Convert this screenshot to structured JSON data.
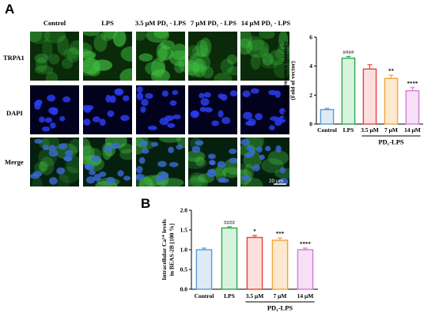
{
  "panel_a": {
    "letter": "A",
    "columns": [
      "Control",
      "LPS",
      "3.5 μM PD₁ - LPS",
      "7 μM PD₁ - LPS",
      "14 μM PD₁ - LPS"
    ],
    "rows": [
      "TRPA1",
      "DAPI",
      "Merge"
    ],
    "scale_bar": "20 μm",
    "stain_colors": {
      "TRPA1": "#2bb02b",
      "DAPI": "#1d2bd6",
      "Merge": "#3aa0a0"
    }
  },
  "panel_b": {
    "letter": "B"
  },
  "chart_data": [
    {
      "type": "bar",
      "ylabel": "Relative Fluorescence Intensity",
      "ylabel2": "(Fold of vector)",
      "categories": [
        "Control",
        "LPS",
        "3.5 μM",
        "7 μM",
        "14 μM"
      ],
      "values": [
        1.0,
        4.55,
        3.8,
        3.15,
        2.3
      ],
      "errors": [
        0.08,
        0.12,
        0.3,
        0.22,
        0.22
      ],
      "significance": [
        "",
        "####",
        "",
        "**",
        "****"
      ],
      "ylim": [
        0,
        6
      ],
      "yticks": [
        "0",
        "2",
        "4",
        "6"
      ],
      "group_label": "PD₁-LPS",
      "colors": [
        "#5b9bd5",
        "#2ea84c",
        "#e8403a",
        "#f2a43a",
        "#d67ad6"
      ],
      "fills": [
        "#deebf7",
        "#d8f3dd",
        "#fde0dd",
        "#fde9cf",
        "#f6e0f6"
      ]
    },
    {
      "type": "bar",
      "ylabel": "Intracellular Ca²⁺ levels",
      "ylabel2": "in BEAS-2B [100 %]",
      "categories": [
        "Control",
        "LPS",
        "3.5 μM",
        "7 μM",
        "14 μM"
      ],
      "values": [
        1.0,
        1.55,
        1.31,
        1.24,
        1.0
      ],
      "errors": [
        0.04,
        0.03,
        0.05,
        0.06,
        0.04
      ],
      "significance": [
        "",
        "####",
        "*",
        "***",
        "****"
      ],
      "ylim": [
        0,
        2.0
      ],
      "yticks": [
        "0.0",
        "0.5",
        "1.0",
        "1.5",
        "2.0"
      ],
      "group_label": "PD₁-LPS",
      "colors": [
        "#5b9bd5",
        "#2ea84c",
        "#e8403a",
        "#f2a43a",
        "#d67ad6"
      ],
      "fills": [
        "#deebf7",
        "#d8f3dd",
        "#fde0dd",
        "#fde9cf",
        "#f6e0f6"
      ]
    }
  ]
}
